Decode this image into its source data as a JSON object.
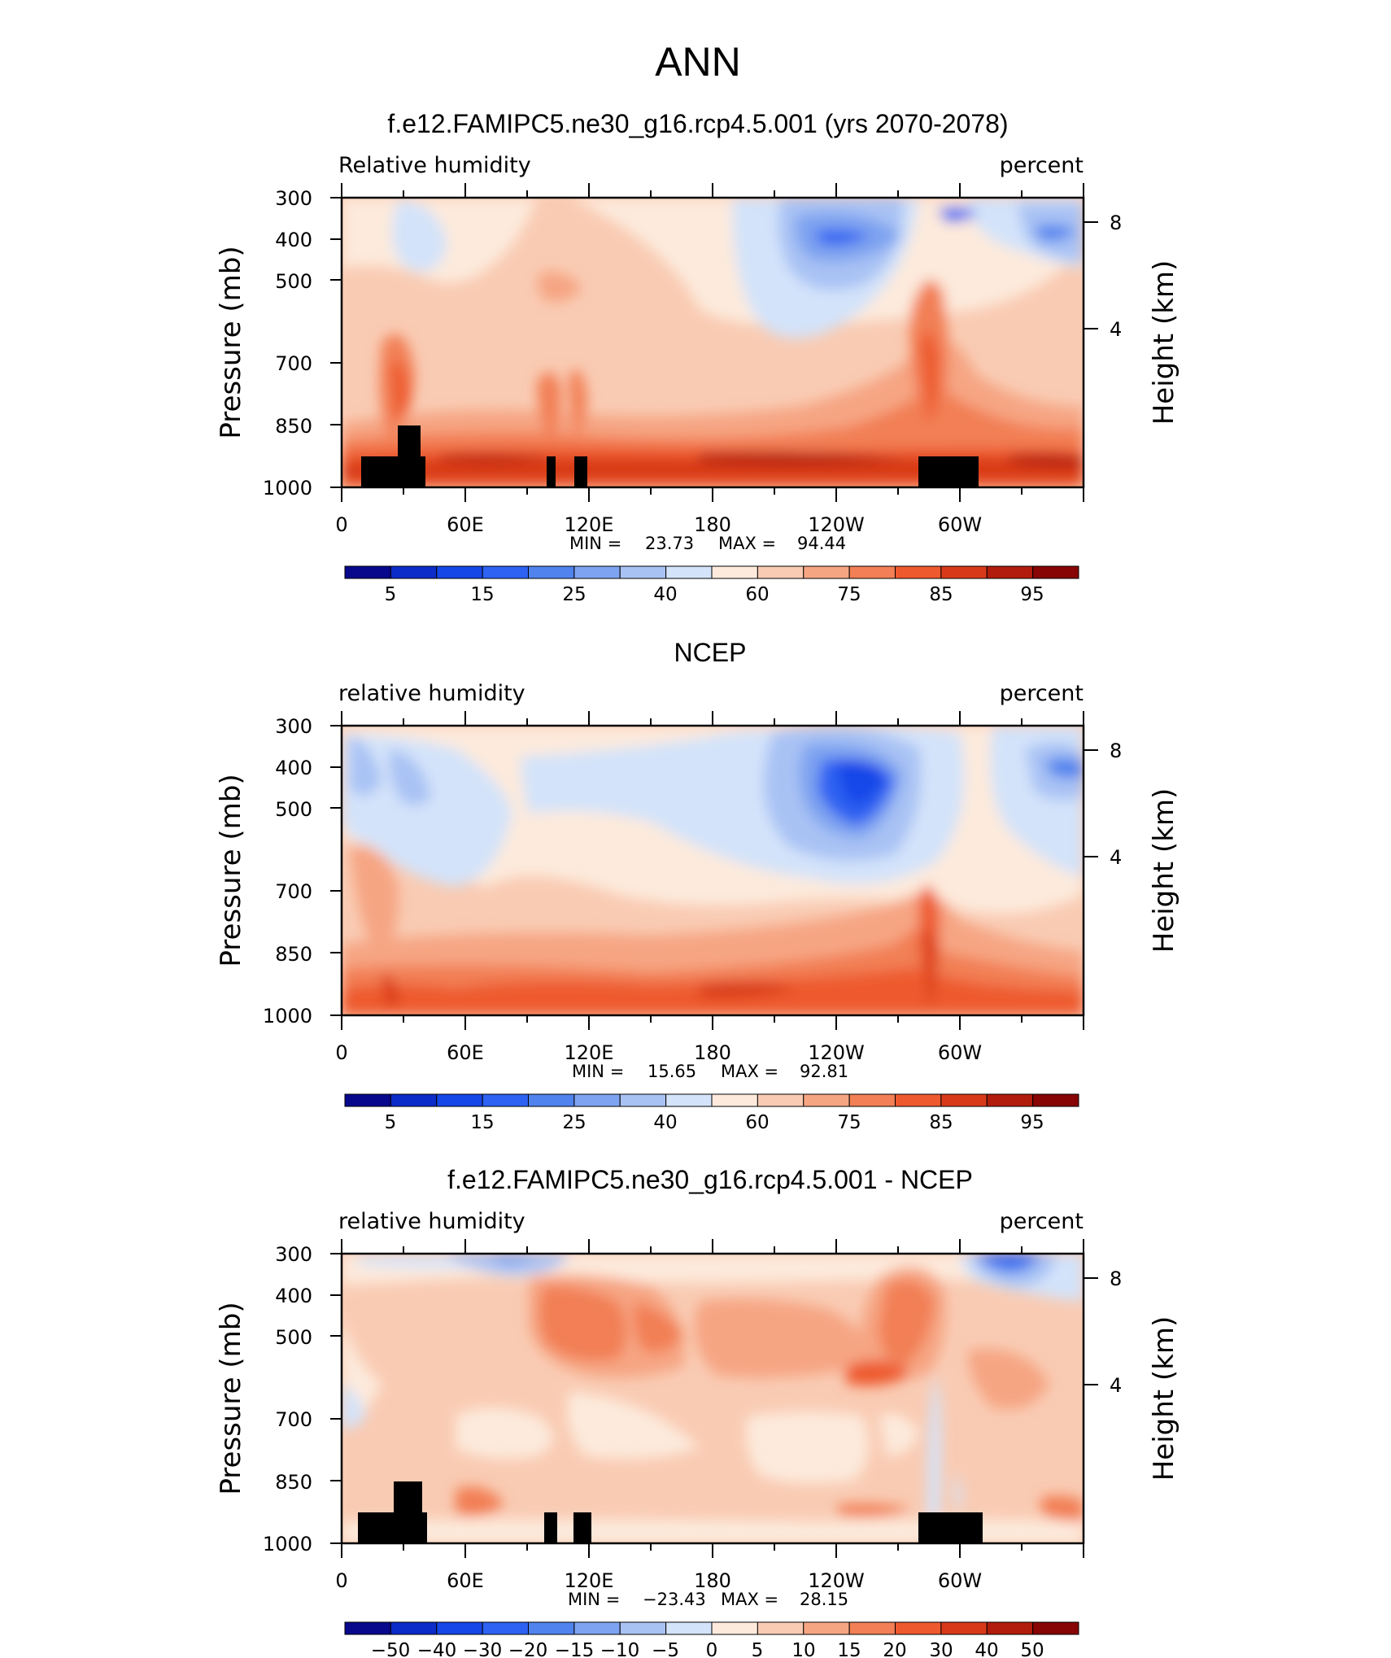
{
  "figure": {
    "title": "ANN"
  },
  "chart_data": [
    {
      "type": "heatmap",
      "title": "f.e12.FAMIPC5.ne30_g16.rcp4.5.001 (yrs 2070-2078)",
      "left_label": "Relative humidity",
      "right_label": "percent",
      "ylabel": "Pressure (mb)",
      "ylabel_right": "Height (km)",
      "x_ticks": [
        "0",
        "60E",
        "120E",
        "180",
        "120W",
        "60W"
      ],
      "y_ticks": [
        "300",
        "400",
        "500",
        "700",
        "850",
        "1000"
      ],
      "y_ticks_right": [
        "8",
        "4"
      ],
      "ylim": [
        1000,
        300
      ],
      "min_label": "MIN =",
      "min_value": "23.73",
      "max_label": "MAX =",
      "max_value": "94.44",
      "colorbar_labels": [
        "5",
        "15",
        "25",
        "40",
        "60",
        "75",
        "85",
        "95"
      ]
    },
    {
      "type": "heatmap",
      "title": "NCEP",
      "left_label": "relative humidity",
      "right_label": "percent",
      "ylabel": "Pressure (mb)",
      "ylabel_right": "Height (km)",
      "x_ticks": [
        "0",
        "60E",
        "120E",
        "180",
        "120W",
        "60W"
      ],
      "y_ticks": [
        "300",
        "400",
        "500",
        "700",
        "850",
        "1000"
      ],
      "y_ticks_right": [
        "8",
        "4"
      ],
      "ylim": [
        1000,
        300
      ],
      "min_label": "MIN =",
      "min_value": "15.65",
      "max_label": "MAX =",
      "max_value": "92.81",
      "colorbar_labels": [
        "5",
        "15",
        "25",
        "40",
        "60",
        "75",
        "85",
        "95"
      ]
    },
    {
      "type": "heatmap",
      "title": "f.e12.FAMIPC5.ne30_g16.rcp4.5.001 - NCEP",
      "left_label": "relative humidity",
      "right_label": "percent",
      "ylabel": "Pressure (mb)",
      "ylabel_right": "Height (km)",
      "x_ticks": [
        "0",
        "60E",
        "120E",
        "180",
        "120W",
        "60W"
      ],
      "y_ticks": [
        "300",
        "400",
        "500",
        "700",
        "850",
        "1000"
      ],
      "y_ticks_right": [
        "8",
        "4"
      ],
      "ylim": [
        1000,
        300
      ],
      "min_label": "MIN =",
      "min_value": "−23.43",
      "max_label": "MAX =",
      "max_value": "28.15",
      "colorbar_labels": [
        "−50",
        "−40",
        "−30",
        "−20",
        "−15",
        "−10",
        "−5",
        "0",
        "5",
        "10",
        "15",
        "20",
        "30",
        "40",
        "50"
      ]
    }
  ],
  "palettes": {
    "abs": [
      "#08088c",
      "#0b2cc8",
      "#1546e8",
      "#2d62f2",
      "#5183ee",
      "#7ea3f0",
      "#a9c2f4",
      "#d3e3fa",
      "#fdeadc",
      "#f9cbb3",
      "#f6a583",
      "#f27f55",
      "#ee5a2e",
      "#d83a19",
      "#b21c0d",
      "#870505"
    ],
    "diff": [
      "#08088c",
      "#0b2cc8",
      "#1546e8",
      "#2d62f2",
      "#5183ee",
      "#7ea3f0",
      "#a9c2f4",
      "#d3e3fa",
      "#fdeadc",
      "#f9cbb3",
      "#f6a583",
      "#f27f55",
      "#ee5a2e",
      "#d83a19",
      "#b21c0d",
      "#870505"
    ]
  }
}
